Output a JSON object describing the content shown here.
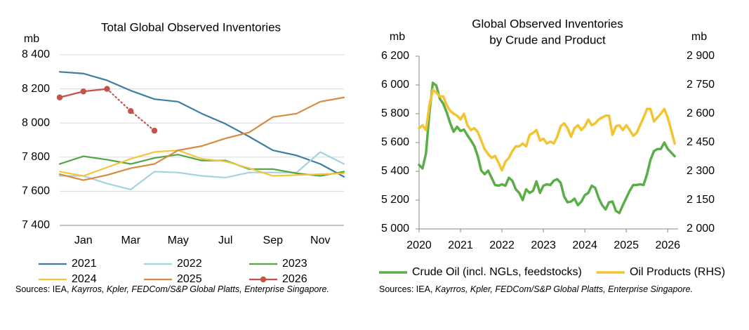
{
  "chart_data": [
    {
      "type": "line",
      "title": "Total Global Observed Inventories",
      "y_label": "mb",
      "categories": [
        null,
        "Jan",
        null,
        "Mar",
        null,
        "May",
        null,
        "Jul",
        null,
        "Sep",
        null,
        "Nov",
        null
      ],
      "ylim": [
        7400,
        8400
      ],
      "yticks": [
        {
          "value": 7400,
          "label": "7 400"
        },
        {
          "value": 7600,
          "label": "7 600"
        },
        {
          "value": 7800,
          "label": "7 800"
        },
        {
          "value": 8000,
          "label": "8 000"
        },
        {
          "value": 8200,
          "label": "8 200"
        },
        {
          "value": 8400,
          "label": "8 400"
        }
      ],
      "grid": true,
      "legend": "bottom",
      "series": [
        {
          "name": "2021",
          "color": "#3b7ea1",
          "values": [
            8300,
            8290,
            8250,
            8190,
            8140,
            8125,
            8055,
            7995,
            7920,
            7840,
            7810,
            7760,
            7685
          ]
        },
        {
          "name": "2022",
          "color": "#a3d3df",
          "values": [
            7690,
            7690,
            7645,
            7610,
            7715,
            7710,
            7690,
            7680,
            7710,
            7710,
            7710,
            7830,
            7760
          ]
        },
        {
          "name": "2023",
          "color": "#55a447",
          "values": [
            7760,
            7805,
            7785,
            7760,
            7795,
            7815,
            7780,
            7780,
            7730,
            7730,
            7705,
            7690,
            7715
          ]
        },
        {
          "name": "2024",
          "color": "#f4c53a",
          "values": [
            7715,
            7690,
            7740,
            7790,
            7830,
            7840,
            7790,
            7775,
            7735,
            7690,
            7695,
            7700,
            7705
          ]
        },
        {
          "name": "2025",
          "color": "#d98a3d",
          "values": [
            7700,
            7665,
            7695,
            7735,
            7760,
            7840,
            7865,
            7910,
            7945,
            8035,
            8055,
            8125,
            8150
          ]
        },
        {
          "name": "2026",
          "color": "#c5524a",
          "markers": true,
          "dashed_from": 2,
          "values": [
            8150,
            8185,
            8200,
            8070,
            7955,
            null,
            null,
            null,
            null,
            null,
            null,
            null,
            null
          ]
        }
      ],
      "source": {
        "prefix": "Sources: IEA,",
        "italic": "Kayrros, Kpler, FEDCom/S&P Global Platts, Enterprise Singapore."
      }
    },
    {
      "type": "line",
      "title": [
        "Global Observed Inventories",
        "by Crude and Product"
      ],
      "y_label": "mb",
      "y2_label": "mb",
      "x": [
        2020,
        2020.083,
        2020.167,
        2020.25,
        2020.333,
        2020.417,
        2020.5,
        2020.583,
        2020.667,
        2020.75,
        2020.833,
        2020.917,
        2021,
        2021.083,
        2021.167,
        2021.25,
        2021.333,
        2021.417,
        2021.5,
        2021.583,
        2021.667,
        2021.75,
        2021.833,
        2021.917,
        2022,
        2022.083,
        2022.167,
        2022.25,
        2022.333,
        2022.417,
        2022.5,
        2022.583,
        2022.667,
        2022.75,
        2022.833,
        2022.917,
        2023,
        2023.083,
        2023.167,
        2023.25,
        2023.333,
        2023.417,
        2023.5,
        2023.583,
        2023.667,
        2023.75,
        2023.833,
        2023.917,
        2024,
        2024.083,
        2024.167,
        2024.25,
        2024.333,
        2024.417,
        2024.5,
        2024.583,
        2024.667,
        2024.75,
        2024.833,
        2024.917,
        2025,
        2025.083,
        2025.167,
        2025.25,
        2025.333,
        2025.417,
        2025.5,
        2025.583,
        2025.667,
        2025.75,
        2025.833,
        2025.917,
        2026,
        2026.083,
        2026.167
      ],
      "xlim": [
        2020,
        2026.25
      ],
      "xticks": [
        2020,
        2021,
        2022,
        2023,
        2024,
        2025,
        2026
      ],
      "ylim": [
        5000,
        6200
      ],
      "yticks": [
        {
          "value": 5000,
          "label": "5 000"
        },
        {
          "value": 5200,
          "label": "5 200"
        },
        {
          "value": 5400,
          "label": "5 400"
        },
        {
          "value": 5600,
          "label": "5 600"
        },
        {
          "value": 5800,
          "label": "5 800"
        },
        {
          "value": 6000,
          "label": "6 000"
        },
        {
          "value": 6200,
          "label": "6 200"
        }
      ],
      "y2lim": [
        2000,
        2900
      ],
      "y2ticks": [
        {
          "value": 2000,
          "label": "2 000"
        },
        {
          "value": 2150,
          "label": "2 150"
        },
        {
          "value": 2300,
          "label": "2 300"
        },
        {
          "value": 2450,
          "label": "2 450"
        },
        {
          "value": 2600,
          "label": "2 600"
        },
        {
          "value": 2750,
          "label": "2 750"
        },
        {
          "value": 2900,
          "label": "2 900"
        }
      ],
      "grid": false,
      "legend": "bottom",
      "series": [
        {
          "name": "Crude Oil (incl. NGLs, feedstocks)",
          "color": "#5aae48",
          "values": [
            5445,
            5420,
            5525,
            5810,
            6015,
            5995,
            5905,
            5870,
            5810,
            5735,
            5675,
            5710,
            5680,
            5690,
            5650,
            5615,
            5575,
            5505,
            5405,
            5380,
            5405,
            5355,
            5305,
            5300,
            5310,
            5300,
            5355,
            5335,
            5275,
            5250,
            5200,
            5275,
            5250,
            5265,
            5330,
            5250,
            5300,
            5310,
            5305,
            5335,
            5345,
            5320,
            5225,
            5185,
            5190,
            5210,
            5165,
            5190,
            5235,
            5250,
            5300,
            5285,
            5215,
            5165,
            5135,
            5185,
            5190,
            5125,
            5110,
            5165,
            5215,
            5265,
            5305,
            5305,
            5310,
            5305,
            5380,
            5480,
            5540,
            5555,
            5555,
            5600,
            5555,
            5530,
            5505
          ]
        },
        {
          "name": "Oil Products (RHS)",
          "color": "#f3c431",
          "axis": "y2",
          "values": [
            2525,
            2540,
            2515,
            2645,
            2725,
            2710,
            2690,
            2690,
            2645,
            2615,
            2600,
            2590,
            2570,
            2600,
            2540,
            2515,
            2525,
            2505,
            2460,
            2415,
            2390,
            2370,
            2380,
            2345,
            2305,
            2350,
            2370,
            2405,
            2430,
            2430,
            2445,
            2430,
            2490,
            2500,
            2515,
            2460,
            2470,
            2445,
            2455,
            2445,
            2480,
            2535,
            2550,
            2525,
            2480,
            2525,
            2540,
            2515,
            2535,
            2570,
            2540,
            2550,
            2570,
            2580,
            2590,
            2590,
            2490,
            2535,
            2540,
            2515,
            2540,
            2515,
            2485,
            2500,
            2540,
            2580,
            2625,
            2625,
            2560,
            2580,
            2600,
            2625,
            2580,
            2515,
            2445
          ]
        }
      ],
      "source": {
        "prefix": "Sources: IEA,",
        "italic": "Kayrros, Kpler, FEDCom/S&P Global Platts, Enterprise Singapore."
      }
    }
  ]
}
